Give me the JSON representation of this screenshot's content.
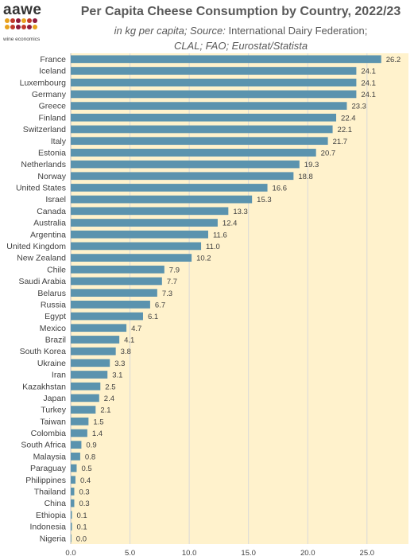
{
  "logo": {
    "word": "aawe",
    "tagline": "wine economics",
    "dot_colors": [
      "#E8A21E",
      "#C0392B",
      "#8E1B3D",
      "#E8A21E",
      "#C0392B",
      "#8E1B3D",
      "#E8A21E",
      "#C0392B",
      "#8E1B3D",
      "#C0392B",
      "#8E1B3D",
      "#E8A21E"
    ]
  },
  "header": {
    "title": "Per Capita Cheese Consumption by Country, 2022/23",
    "subtitle_lead": "in kg per capita; Source:",
    "subtitle_source": " International Dairy Federation; ",
    "subtitle_tail": "CLAL; FAO; Eurostat/Statista"
  },
  "colors": {
    "bar": "#5B93AE",
    "plot_bg": "#FFF2CC",
    "grid": "#D9D9D9",
    "text": "#404040"
  },
  "chart_data": {
    "type": "bar",
    "orientation": "horizontal",
    "categories": [
      "France",
      "Iceland",
      "Luxembourg",
      "Germany",
      "Greece",
      "Finland",
      "Switzerland",
      "Italy",
      "Estonia",
      "Netherlands",
      "Norway",
      "United States",
      "Israel",
      "Canada",
      "Australia",
      "Argentina",
      "United Kingdom",
      "New Zealand",
      "Chile",
      "Saudi Arabia",
      "Belarus",
      "Russia",
      "Egypt",
      "Mexico",
      "Brazil",
      "South Korea",
      "Ukraine",
      "Iran",
      "Kazakhstan",
      "Japan",
      "Turkey",
      "Taiwan",
      "Colombia",
      "South Africa",
      "Malaysia",
      "Paraguay",
      "Philippines",
      "Thailand",
      "China",
      "Ethiopia",
      "Indonesia",
      "Nigeria"
    ],
    "values": [
      26.2,
      24.1,
      24.1,
      24.1,
      23.3,
      22.4,
      22.1,
      21.7,
      20.7,
      19.3,
      18.8,
      16.6,
      15.3,
      13.3,
      12.4,
      11.6,
      11.0,
      10.2,
      7.9,
      7.7,
      7.3,
      6.7,
      6.1,
      4.7,
      4.1,
      3.8,
      3.3,
      3.1,
      2.5,
      2.4,
      2.1,
      1.5,
      1.4,
      0.9,
      0.8,
      0.5,
      0.4,
      0.3,
      0.3,
      0.1,
      0.1,
      0.0
    ],
    "value_labels": [
      "26.2",
      "24.1",
      "24.1",
      "24.1",
      "23.3",
      "22.4",
      "22.1",
      "21.7",
      "20.7",
      "19.3",
      "18.8",
      "16.6",
      "15.3",
      "13.3",
      "12.4",
      "11.6",
      "11.0",
      "10.2",
      "7.9",
      "7.7",
      "7.3",
      "6.7",
      "6.1",
      "4.7",
      "4.1",
      "3.8",
      "3.3",
      "3.1",
      "2.5",
      "2.4",
      "2.1",
      "1.5",
      "1.4",
      "0.9",
      "0.8",
      "0.5",
      "0.4",
      "0.3",
      "0.3",
      "0.1",
      "0.1",
      "0.0"
    ],
    "x_ticks": [
      0,
      5,
      10,
      15,
      20,
      25
    ],
    "x_tick_labels": [
      "0.0",
      "5.0",
      "10.0",
      "15.0",
      "20.0",
      "25.0"
    ],
    "xlim": [
      0,
      28.5
    ],
    "xlabel": "",
    "ylabel": "",
    "grid": "vertical",
    "legend": "none"
  }
}
